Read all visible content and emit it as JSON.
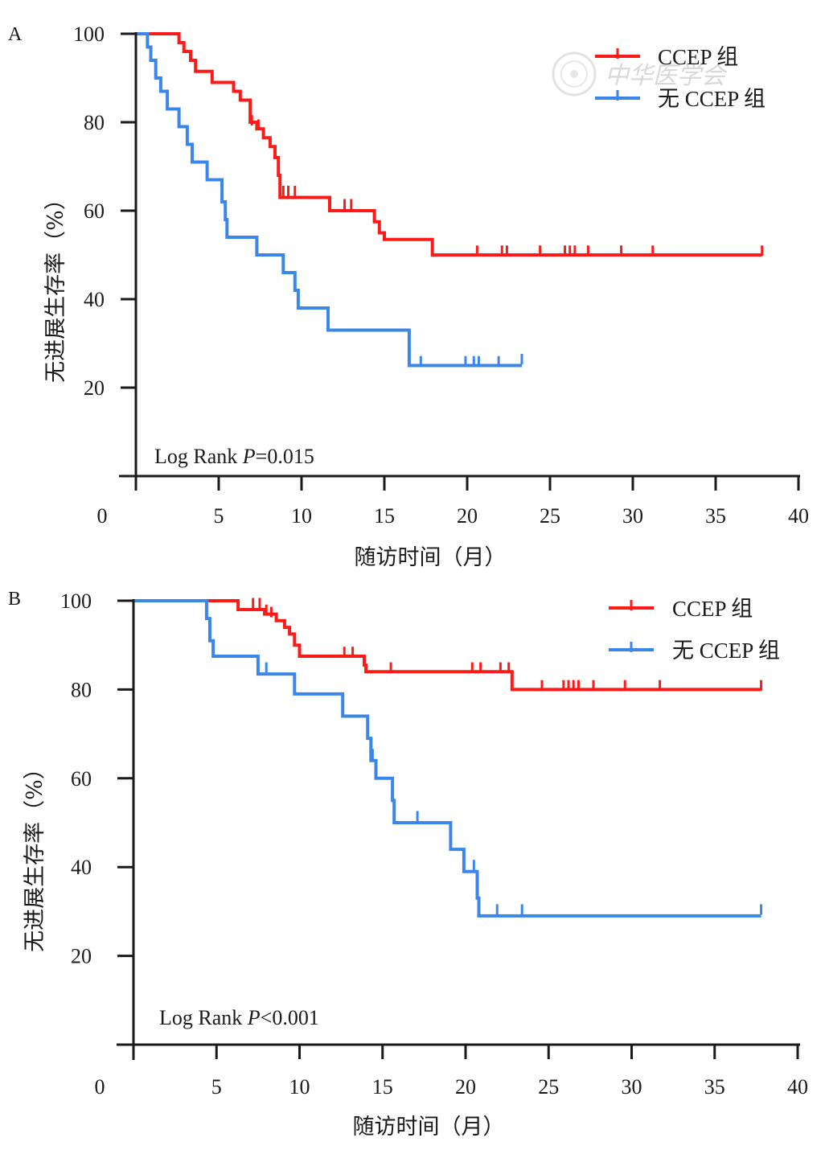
{
  "chart_data": [
    {
      "type": "line",
      "panel": "A",
      "xlabel": "随访时间（月）",
      "ylabel": "无进展生存率（%）",
      "xlim": [
        0,
        40
      ],
      "ylim": [
        0,
        100
      ],
      "x_ticks": [
        "0",
        "5",
        "10",
        "15",
        "20",
        "25",
        "30",
        "35",
        "40"
      ],
      "y_ticks": [
        "20",
        "40",
        "60",
        "80",
        "100"
      ],
      "annotation": {
        "prefix": "Log Rank ",
        "p": "P",
        "suffix": "=0.015"
      },
      "legend_position": "top-right",
      "watermark": "中华医学会",
      "series": [
        {
          "name": "CCEP 组",
          "color": "#ff1a1a",
          "steps": [
            [
              0,
              100
            ],
            [
              2.2,
              100
            ],
            [
              2.6,
              98
            ],
            [
              2.9,
              96
            ],
            [
              3.3,
              94
            ],
            [
              3.6,
              91.5
            ],
            [
              4.6,
              89
            ],
            [
              5.9,
              87
            ],
            [
              6.3,
              85
            ],
            [
              6.9,
              80
            ],
            [
              7.3,
              78.5
            ],
            [
              7.7,
              76.5
            ],
            [
              8.1,
              74.5
            ],
            [
              8.4,
              72
            ],
            [
              8.6,
              68
            ],
            [
              8.7,
              63
            ],
            [
              11.7,
              60
            ],
            [
              14.4,
              57.5
            ],
            [
              14.7,
              55
            ],
            [
              15,
              53.5
            ],
            [
              17.9,
              50
            ],
            [
              37.8,
              50
            ]
          ],
          "censors": [
            [
              7.0,
              80
            ],
            [
              7.4,
              79
            ],
            [
              8.9,
              64
            ],
            [
              9.2,
              64
            ],
            [
              9.6,
              64
            ],
            [
              12.6,
              61
            ],
            [
              13.0,
              61
            ],
            [
              20.6,
              50.5
            ],
            [
              22.1,
              50.5
            ],
            [
              22.4,
              50.5
            ],
            [
              24.4,
              50.5
            ],
            [
              25.9,
              50.5
            ],
            [
              26.2,
              50.5
            ],
            [
              26.5,
              50.5
            ],
            [
              27.3,
              50.5
            ],
            [
              29.3,
              50.5
            ],
            [
              31.2,
              50.5
            ],
            [
              37.8,
              50.5
            ]
          ]
        },
        {
          "name": "无 CCEP 组",
          "color": "#3a86ea",
          "steps": [
            [
              0,
              100
            ],
            [
              0.6,
              100
            ],
            [
              0.7,
              97
            ],
            [
              0.9,
              94
            ],
            [
              1.2,
              90
            ],
            [
              1.5,
              87
            ],
            [
              1.9,
              83
            ],
            [
              2.6,
              79
            ],
            [
              3.1,
              75
            ],
            [
              3.4,
              71
            ],
            [
              4.3,
              67
            ],
            [
              5.2,
              62
            ],
            [
              5.4,
              58
            ],
            [
              5.5,
              54
            ],
            [
              7.3,
              50
            ],
            [
              8.9,
              46
            ],
            [
              9.6,
              42
            ],
            [
              9.8,
              38
            ],
            [
              11.6,
              33
            ],
            [
              16.5,
              25
            ],
            [
              23.3,
              25
            ]
          ],
          "censors": [
            [
              17.2,
              25.5
            ],
            [
              19.9,
              25.5
            ],
            [
              20.4,
              25.5
            ],
            [
              20.7,
              25.5
            ],
            [
              21.9,
              25.5
            ],
            [
              23.3,
              26
            ]
          ]
        }
      ]
    },
    {
      "type": "line",
      "panel": "B",
      "xlabel": "随访时间（月）",
      "ylabel": "无进展生存率（%）",
      "xlim": [
        0,
        40
      ],
      "ylim": [
        0,
        100
      ],
      "x_ticks": [
        "0",
        "5",
        "10",
        "15",
        "20",
        "25",
        "30",
        "35",
        "40"
      ],
      "y_ticks": [
        "20",
        "40",
        "60",
        "80",
        "100"
      ],
      "annotation": {
        "prefix": "Log Rank ",
        "p": "P",
        "suffix": "<0.001"
      },
      "legend_position": "top-right",
      "series": [
        {
          "name": "CCEP 组",
          "color": "#ff1a1a",
          "steps": [
            [
              0,
              100
            ],
            [
              6.2,
              100
            ],
            [
              6.3,
              98
            ],
            [
              7.9,
              97
            ],
            [
              8.6,
              95.5
            ],
            [
              9.1,
              94
            ],
            [
              9.4,
              92.5
            ],
            [
              9.7,
              90
            ],
            [
              10,
              87.5
            ],
            [
              13.9,
              85.5
            ],
            [
              14,
              84
            ],
            [
              22.8,
              80
            ],
            [
              37.8,
              80
            ]
          ],
          "censors": [
            [
              7.2,
              99
            ],
            [
              7.6,
              99
            ],
            [
              8.0,
              97.5
            ],
            [
              8.3,
              97
            ],
            [
              12.7,
              88
            ],
            [
              13.2,
              88
            ],
            [
              15.5,
              84.5
            ],
            [
              20.4,
              84.5
            ],
            [
              20.9,
              84.5
            ],
            [
              22.1,
              84.5
            ],
            [
              22.6,
              84.5
            ],
            [
              24.6,
              80.5
            ],
            [
              25.9,
              80.5
            ],
            [
              26.2,
              80.5
            ],
            [
              26.5,
              80.5
            ],
            [
              26.8,
              80.5
            ],
            [
              27.7,
              80.5
            ],
            [
              29.6,
              80.5
            ],
            [
              31.7,
              80.5
            ],
            [
              37.8,
              80.5
            ]
          ]
        },
        {
          "name": "无 CCEP 组",
          "color": "#3a86ea",
          "steps": [
            [
              0,
              100
            ],
            [
              4.3,
              100
            ],
            [
              4.4,
              96
            ],
            [
              4.6,
              91
            ],
            [
              4.8,
              87.5
            ],
            [
              7.5,
              83.5
            ],
            [
              9.7,
              79
            ],
            [
              12.6,
              74
            ],
            [
              14.1,
              69
            ],
            [
              14.3,
              64
            ],
            [
              14.6,
              60
            ],
            [
              15.6,
              55
            ],
            [
              15.7,
              50
            ],
            [
              19.1,
              44
            ],
            [
              19.9,
              39
            ],
            [
              20.7,
              33
            ],
            [
              20.8,
              29
            ],
            [
              37.8,
              29
            ]
          ],
          "censors": [
            [
              8.0,
              84.5
            ],
            [
              14.4,
              65
            ],
            [
              17.1,
              51
            ],
            [
              20.5,
              40
            ],
            [
              21.9,
              30
            ],
            [
              23.4,
              30
            ],
            [
              37.8,
              30
            ]
          ]
        }
      ]
    }
  ]
}
